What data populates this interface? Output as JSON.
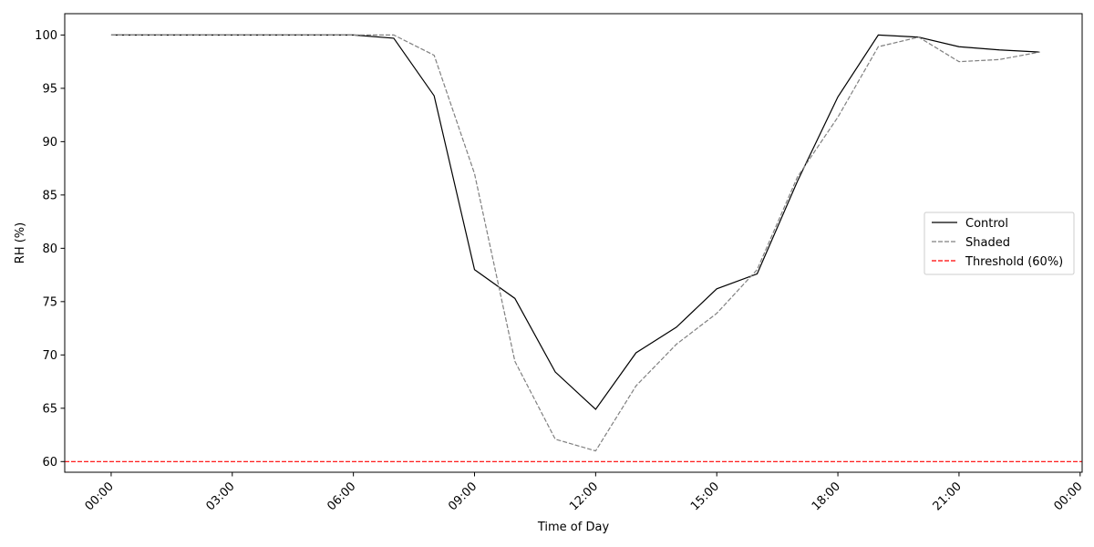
{
  "chart_data": {
    "type": "line",
    "title": "",
    "xlabel": "Time of Day",
    "ylabel": "RH (%)",
    "x_hours": [
      0,
      1,
      2,
      3,
      4,
      5,
      6,
      7,
      8,
      9,
      10,
      11,
      12,
      13,
      14,
      15,
      16,
      17,
      18,
      19,
      20,
      21,
      22,
      23
    ],
    "xlim_hours": [
      -1.15,
      24.05
    ],
    "ylim": [
      59.0,
      102.0
    ],
    "x_ticks": [
      {
        "hour": 0,
        "label": "00:00"
      },
      {
        "hour": 3,
        "label": "03:00"
      },
      {
        "hour": 6,
        "label": "06:00"
      },
      {
        "hour": 9,
        "label": "09:00"
      },
      {
        "hour": 12,
        "label": "12:00"
      },
      {
        "hour": 15,
        "label": "15:00"
      },
      {
        "hour": 18,
        "label": "18:00"
      },
      {
        "hour": 21,
        "label": "21:00"
      },
      {
        "hour": 24,
        "label": "00:00"
      }
    ],
    "y_ticks": [
      60,
      65,
      70,
      75,
      80,
      85,
      90,
      95,
      100
    ],
    "series": [
      {
        "name": "Control",
        "color": "#000000",
        "dash": "solid",
        "values": [
          100,
          100,
          100,
          100,
          100,
          100,
          100,
          99.7,
          94.3,
          78,
          75.3,
          68.4,
          64.9,
          70.2,
          72.6,
          76.2,
          77.6,
          86.3,
          94.2,
          100,
          99.8,
          98.9,
          98.6,
          98.4
        ]
      },
      {
        "name": "Shaded",
        "color": "#808080",
        "dash": "dashed",
        "values": [
          100,
          100,
          100,
          100,
          100,
          100,
          100,
          100,
          98.1,
          87,
          69.4,
          62.1,
          61,
          67.1,
          71,
          73.9,
          78,
          86.7,
          92.3,
          98.9,
          99.8,
          97.5,
          97.7,
          98.4
        ]
      }
    ],
    "threshold": {
      "name": "Threshold (60%)",
      "value": 60,
      "color": "#ff0000",
      "dash": "dashed"
    },
    "legend": {
      "placement": "right"
    },
    "grid": false
  }
}
